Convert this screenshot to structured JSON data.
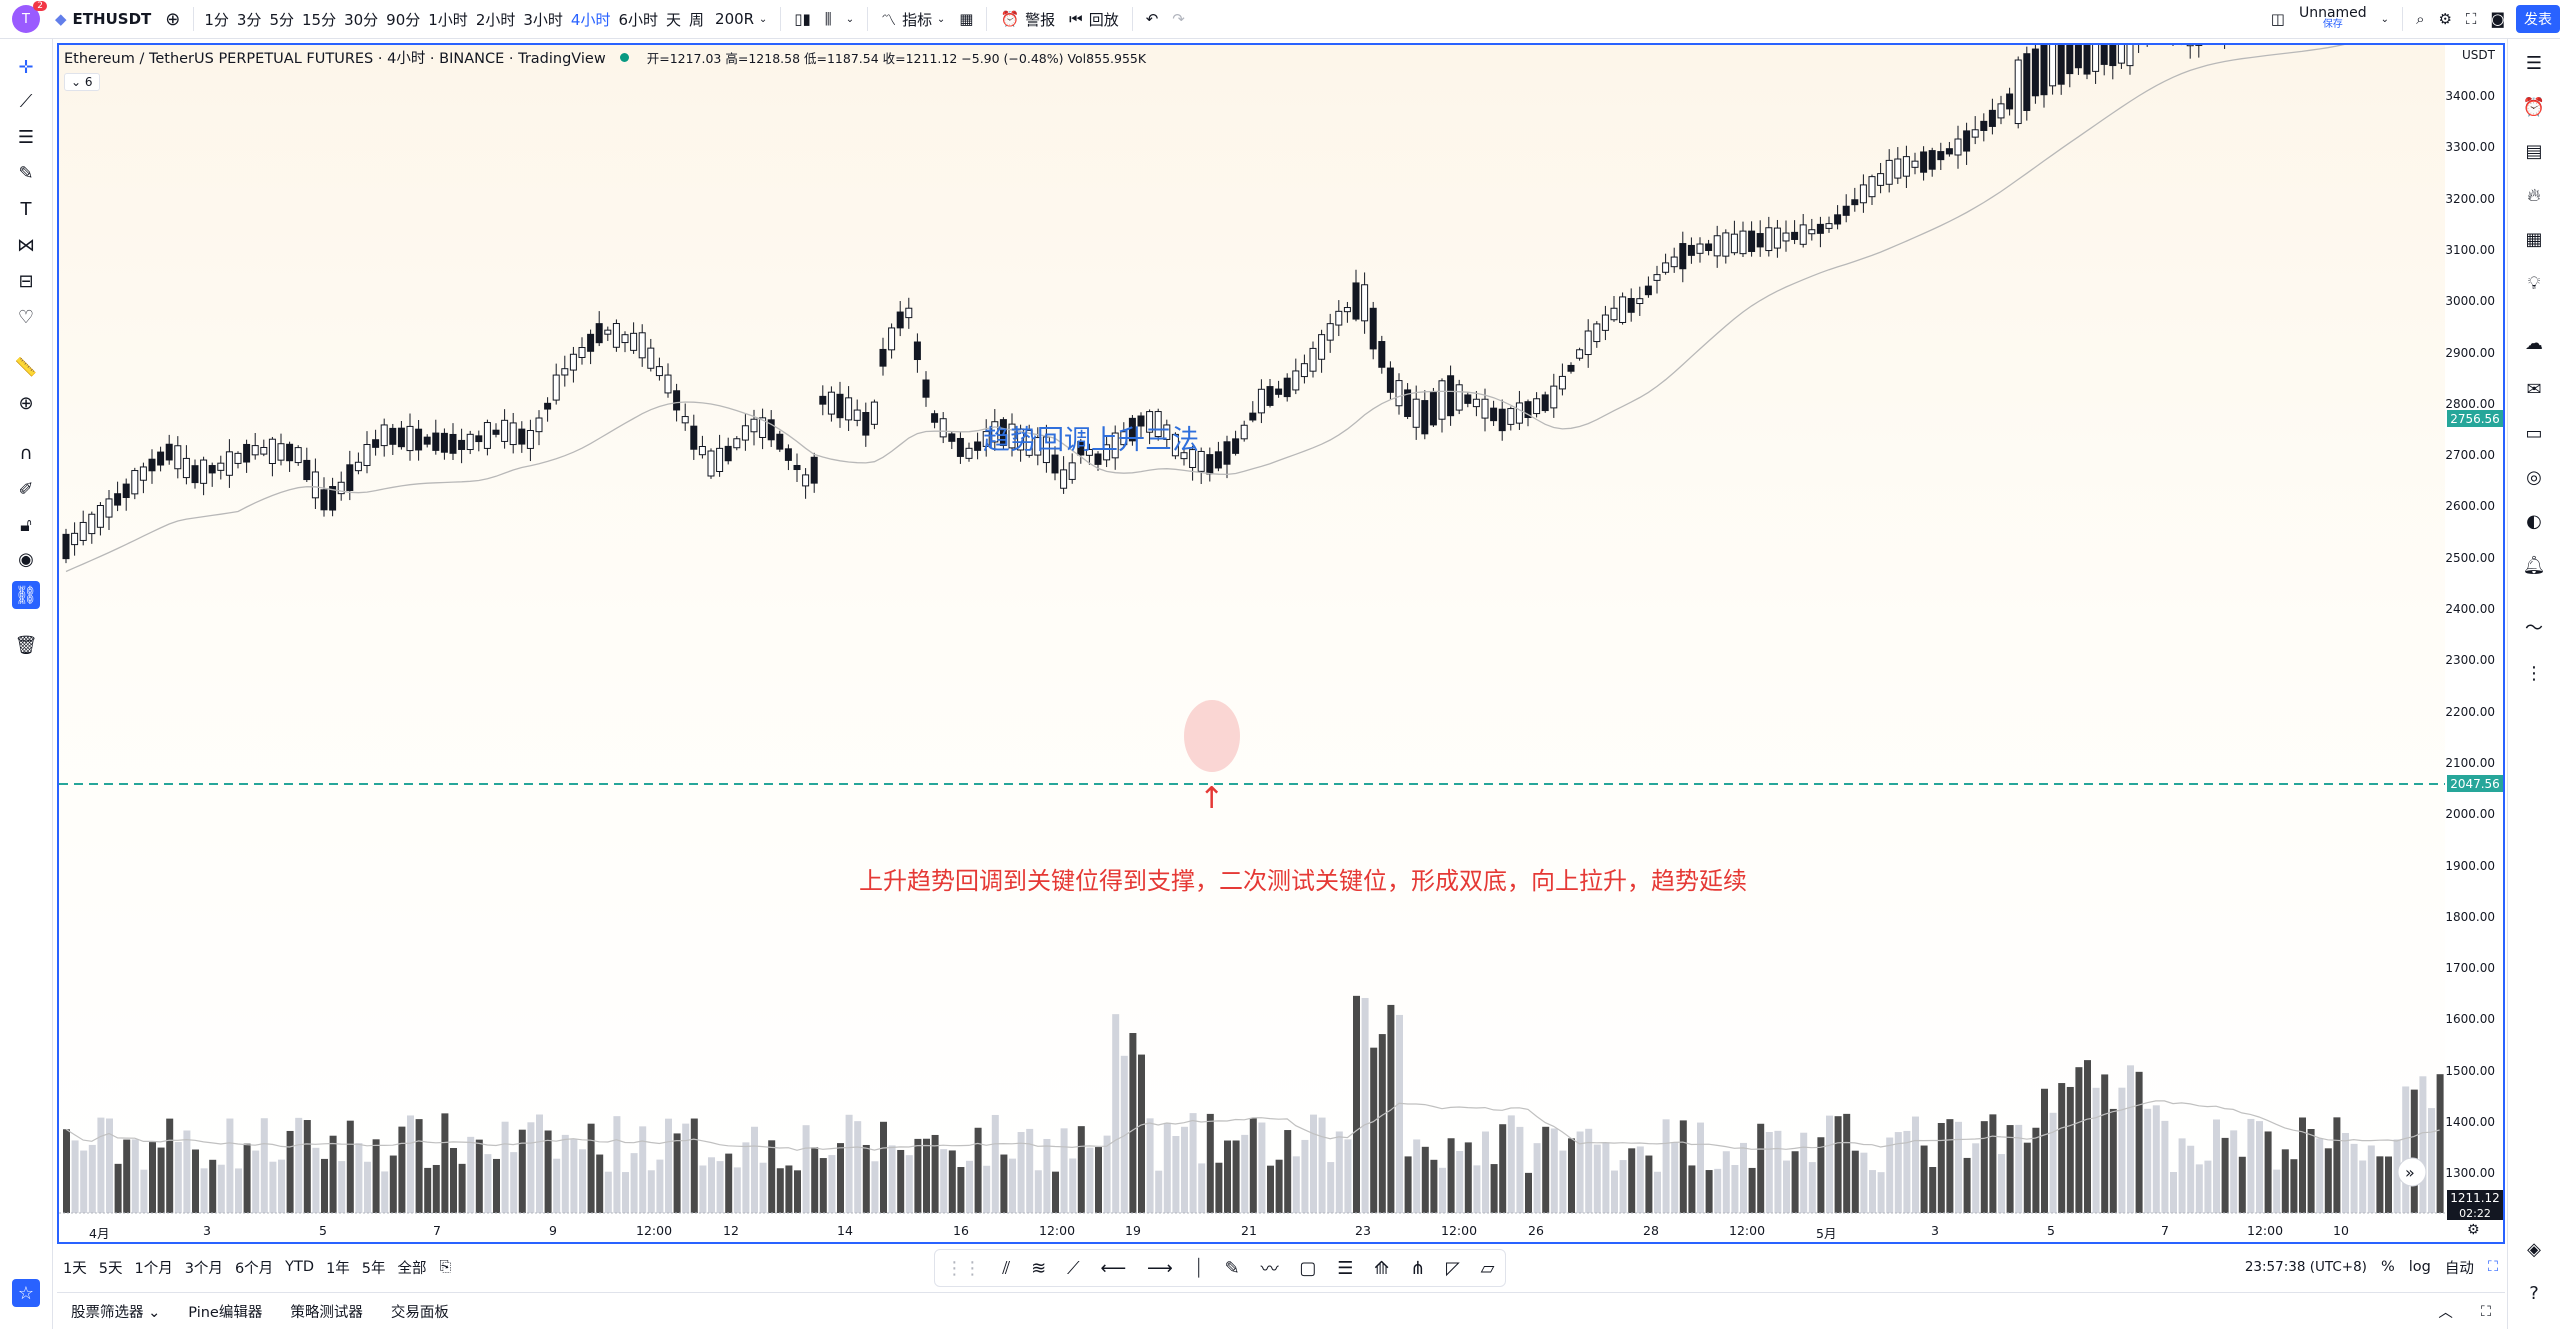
{
  "topbar": {
    "avatar_letter": "T",
    "avatar_badge": "2",
    "symbol": "ETHUSDT",
    "intervals": [
      "1分",
      "3分",
      "5分",
      "15分",
      "30分",
      "90分",
      "1小时",
      "2小时",
      "3小时",
      "4小时",
      "6小时",
      "天",
      "周"
    ],
    "active_interval": "4小时",
    "bar_count": "200R",
    "indicators_label": "指标",
    "alert_label": "警报",
    "replay_label": "回放",
    "layout_name": "Unnamed",
    "layout_sub": "保存",
    "publish_label": "发表"
  },
  "chart": {
    "title": "Ethereum / TetherUS PERPETUAL FUTURES · 4小时 · BINANCE · TradingView",
    "ohlc": "开=1217.03 高=1218.58 低=1187.54 收=1211.12 −5.90 (−0.48%) Vol855.955K",
    "indicator_count": "6",
    "annotation_title": "趋势回调上升三法",
    "annotation_note": "上升趋势回调到关键位得到支撑，二次测试关键位，形成双底，向上拉升，趋势延续",
    "arrow": "↑"
  },
  "price_axis": {
    "unit": "USDT",
    "ticks": [
      "3400.00",
      "3300.00",
      "3200.00",
      "3100.00",
      "3000.00",
      "2900.00",
      "2800.00",
      "2700.00",
      "2600.00",
      "2500.00",
      "2400.00",
      "2300.00",
      "2200.00",
      "2100.00",
      "2000.00",
      "1900.00",
      "1800.00",
      "1700.00",
      "1600.00",
      "1500.00",
      "1400.00",
      "1300.00"
    ],
    "ma_label": "2756.56",
    "level_label": "2047.56",
    "last_price": "1211.12",
    "countdown": "02:22"
  },
  "time_axis": {
    "labels": [
      "4月",
      "3",
      "5",
      "7",
      "9",
      "12:00",
      "12",
      "14",
      "16",
      "12:00",
      "19",
      "21",
      "23",
      "12:00",
      "26",
      "28",
      "12:00",
      "5月",
      "3",
      "5",
      "7",
      "12:00",
      "10"
    ]
  },
  "bottom": {
    "ranges": [
      "1天",
      "5天",
      "1个月",
      "3个月",
      "6个月",
      "YTD",
      "1年",
      "5年",
      "全部"
    ],
    "clock": "23:57:38 (UTC+8)",
    "pct": "%",
    "log": "log",
    "auto": "自动"
  },
  "footer": {
    "tabs": [
      "股票筛选器",
      "Pine编辑器",
      "策略测试器",
      "交易面板"
    ]
  },
  "colors": {
    "accent": "#2962ff",
    "up_candle": "#ffffff",
    "down_candle": "#131722",
    "level_line": "#26a69a",
    "annotation_blue": "#2f6fdc",
    "annotation_red": "#e53935"
  }
}
